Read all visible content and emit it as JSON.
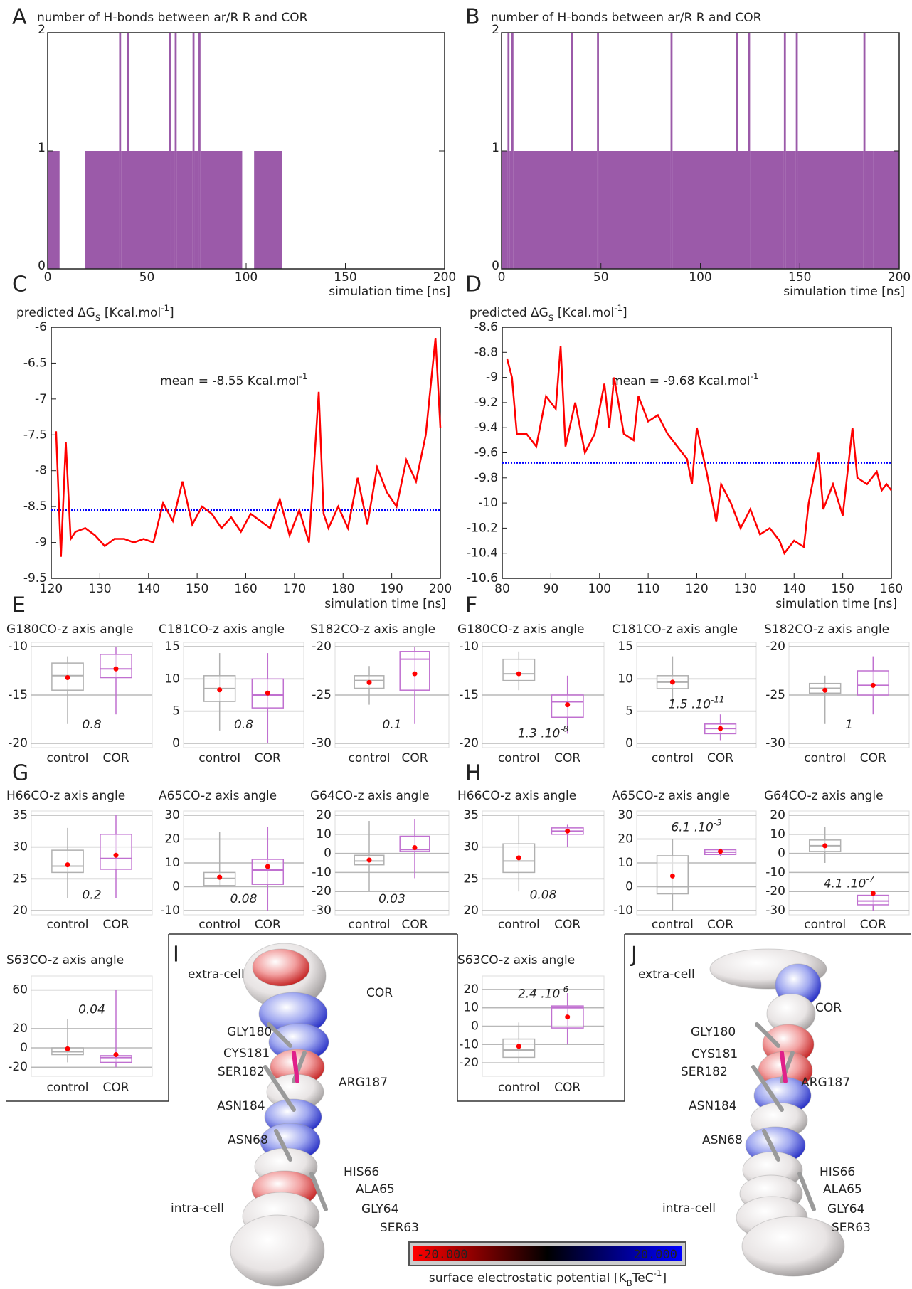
{
  "panel_letters": [
    "A",
    "B",
    "C",
    "D",
    "E",
    "F",
    "G",
    "H",
    "I",
    "J"
  ],
  "chart_data": [
    {
      "type": "histogram",
      "title": "number of H-bonds between ar/R R and COR",
      "xlabel": "simulation time [ns]",
      "color": "#8a3d9a",
      "bins": [
        0,
        6,
        19,
        36,
        37,
        40,
        41,
        61,
        62,
        64,
        65,
        73,
        74,
        76,
        77,
        98,
        104,
        118,
        200
      ],
      "values": [
        1,
        0,
        1,
        2,
        1,
        2,
        1,
        2,
        1,
        2,
        1,
        2,
        1,
        2,
        1,
        0,
        1,
        0
      ],
      "xlim": [
        0,
        200
      ],
      "xticks": [
        0,
        50,
        100,
        150,
        200
      ],
      "ylim": [
        0,
        2
      ],
      "yticks": [
        0,
        1,
        2
      ]
    },
    {
      "type": "histogram",
      "title": "number of H-bonds between ar/R R and COR",
      "xlabel": "simulation time [ns]",
      "color": "#8a3d9a",
      "bins": [
        0,
        3,
        4,
        5,
        6,
        35,
        36,
        48,
        49,
        85,
        86,
        118,
        119,
        124,
        125,
        142,
        143,
        148,
        149,
        182,
        183,
        187,
        200
      ],
      "values": [
        1,
        2,
        1,
        2,
        1,
        2,
        1,
        2,
        1,
        2,
        1,
        2,
        1,
        2,
        1,
        2,
        1,
        2,
        1,
        2,
        1,
        1
      ],
      "xlim": [
        0,
        200
      ],
      "xticks": [
        0,
        50,
        100,
        150,
        200
      ],
      "ylim": [
        0,
        2
      ],
      "yticks": [
        0,
        1,
        2
      ]
    },
    {
      "type": "line",
      "title": [
        "predicted ΔG",
        "S",
        " [Kcal.mol",
        "-1",
        "]"
      ],
      "xlabel": "simulation time [ns]",
      "color": "#ff0000",
      "mean_color": "#0000ff",
      "mean": -8.55,
      "mean_label": [
        "mean = -8.55 Kcal.mol",
        "-1"
      ],
      "x": [
        121,
        122,
        123,
        124,
        125,
        127,
        129,
        131,
        133,
        135,
        137,
        139,
        141,
        143,
        145,
        147,
        149,
        151,
        153,
        155,
        157,
        159,
        161,
        163,
        165,
        167,
        169,
        171,
        173,
        175,
        176,
        177,
        179,
        181,
        183,
        185,
        187,
        189,
        191,
        193,
        195,
        197,
        199,
        200
      ],
      "values": [
        -7.45,
        -9.2,
        -7.6,
        -8.95,
        -8.85,
        -8.8,
        -8.9,
        -9.05,
        -8.95,
        -8.95,
        -9.0,
        -8.95,
        -9.0,
        -8.45,
        -8.7,
        -8.15,
        -8.75,
        -8.5,
        -8.6,
        -8.8,
        -8.65,
        -8.85,
        -8.6,
        -8.7,
        -8.8,
        -8.4,
        -8.9,
        -8.55,
        -9.0,
        -6.9,
        -8.6,
        -8.8,
        -8.5,
        -8.8,
        -8.1,
        -8.75,
        -7.95,
        -8.3,
        -8.5,
        -7.85,
        -8.15,
        -7.5,
        -6.15,
        -7.4
      ],
      "xlim": [
        120,
        200
      ],
      "xticks": [
        120,
        130,
        140,
        150,
        160,
        170,
        180,
        190,
        200
      ],
      "ylim": [
        -9.5,
        -6
      ],
      "yticks": [
        -9.5,
        -9,
        -8.5,
        -8,
        -7.5,
        -7,
        -6.5,
        -6
      ]
    },
    {
      "type": "line",
      "title": [
        "predicted ΔG",
        "S",
        " [Kcal.mol",
        "-1",
        "]"
      ],
      "xlabel": "simulation time [ns]",
      "color": "#ff0000",
      "mean_color": "#0000ff",
      "mean": -9.68,
      "mean_label": [
        "mean = -9.68 Kcal.mol",
        "-1"
      ],
      "x": [
        81,
        82,
        83,
        85,
        87,
        89,
        91,
        92,
        93,
        95,
        97,
        99,
        101,
        102,
        103,
        105,
        107,
        108,
        110,
        112,
        114,
        116,
        118,
        119,
        120,
        122,
        124,
        125,
        127,
        129,
        131,
        133,
        135,
        137,
        138,
        140,
        142,
        143,
        145,
        146,
        148,
        150,
        152,
        153,
        155,
        157,
        158,
        159,
        160
      ],
      "values": [
        -8.85,
        -9.0,
        -9.45,
        -9.45,
        -9.55,
        -9.15,
        -9.25,
        -8.75,
        -9.55,
        -9.2,
        -9.6,
        -9.45,
        -9.05,
        -9.4,
        -9.0,
        -9.45,
        -9.5,
        -9.15,
        -9.35,
        -9.3,
        -9.45,
        -9.55,
        -9.65,
        -9.85,
        -9.4,
        -9.75,
        -10.15,
        -9.85,
        -10.0,
        -10.2,
        -10.05,
        -10.25,
        -10.2,
        -10.3,
        -10.4,
        -10.3,
        -10.35,
        -10.0,
        -9.6,
        -10.05,
        -9.85,
        -10.1,
        -9.4,
        -9.8,
        -9.85,
        -9.75,
        -9.9,
        -9.85,
        -9.9
      ],
      "xlim": [
        80,
        160
      ],
      "xticks": [
        80,
        90,
        100,
        110,
        120,
        130,
        140,
        150,
        160
      ],
      "ylim": [
        -10.6,
        -8.6
      ],
      "yticks": [
        -10.6,
        -10.4,
        -10.2,
        -10,
        -9.8,
        -9.6,
        -9.4,
        -9.2,
        -9,
        -8.8,
        -8.6
      ]
    },
    {
      "type": "box",
      "title": "G180CO-z axis angle",
      "categories": [
        "control",
        "COR"
      ],
      "ylim": [
        -20,
        -10
      ],
      "yticks": [
        -20,
        -15,
        -10
      ],
      "colors": [
        "#b0b0b0",
        "#c070d0"
      ],
      "mean_color": "#ff0000",
      "p_label": "0.8",
      "p_color": "#222222",
      "boxes": [
        {
          "whisker_low": -18,
          "q1": -14.5,
          "median": -13,
          "q3": -11.7,
          "whisker_high": -11,
          "mean": -13.2
        },
        {
          "whisker_low": -17,
          "q1": -13.2,
          "median": -12.3,
          "q3": -10.8,
          "whisker_high": -10,
          "mean": -12.3
        }
      ]
    },
    {
      "type": "box",
      "title": "C181CO-z axis angle",
      "categories": [
        "control",
        "COR"
      ],
      "ylim": [
        0,
        15
      ],
      "yticks": [
        0,
        5,
        10,
        15
      ],
      "colors": [
        "#b0b0b0",
        "#c070d0"
      ],
      "mean_color": "#ff0000",
      "p_label": "0.8",
      "p_color": "#222222",
      "boxes": [
        {
          "whisker_low": 2,
          "q1": 6.5,
          "median": 8.5,
          "q3": 10.5,
          "whisker_high": 14,
          "mean": 8.3
        },
        {
          "whisker_low": 0,
          "q1": 5.5,
          "median": 7.5,
          "q3": 10,
          "whisker_high": 14,
          "mean": 7.8
        }
      ]
    },
    {
      "type": "box",
      "title": "S182CO-z axis angle",
      "categories": [
        "control",
        "COR"
      ],
      "ylim": [
        -30,
        -20
      ],
      "yticks": [
        -30,
        -25,
        -20
      ],
      "colors": [
        "#b0b0b0",
        "#c070d0"
      ],
      "mean_color": "#ff0000",
      "p_label": "0.1",
      "p_color": "#222222",
      "boxes": [
        {
          "whisker_low": -26,
          "q1": -24.3,
          "median": -23.5,
          "q3": -23,
          "whisker_high": -22,
          "mean": -23.7
        },
        {
          "whisker_low": -28,
          "q1": -24.5,
          "median": -21.3,
          "q3": -20.5,
          "whisker_high": -20,
          "mean": -22.8
        }
      ]
    },
    {
      "type": "box",
      "title": "G180CO-z axis angle",
      "categories": [
        "control",
        "COR"
      ],
      "ylim": [
        -20,
        -10
      ],
      "yticks": [
        -20,
        -15,
        -10
      ],
      "colors": [
        "#b0b0b0",
        "#c070d0"
      ],
      "mean_color": "#ff0000",
      "p_label": [
        "1.3 .10",
        "-8"
      ],
      "p_color": "#ff0000",
      "boxes": [
        {
          "whisker_low": -14.5,
          "q1": -13.5,
          "median": -12.8,
          "q3": -11.3,
          "whisker_high": -10.5,
          "mean": -12.8
        },
        {
          "whisker_low": -19,
          "q1": -17.3,
          "median": -15.7,
          "q3": -15,
          "whisker_high": -13,
          "mean": -16
        }
      ]
    },
    {
      "type": "box",
      "title": "C181CO-z axis angle",
      "categories": [
        "control",
        "COR"
      ],
      "ylim": [
        0,
        15
      ],
      "yticks": [
        0,
        5,
        10,
        15
      ],
      "colors": [
        "#b0b0b0",
        "#c070d0"
      ],
      "mean_color": "#ff0000",
      "p_label": [
        "1.5 .10",
        "-11"
      ],
      "p_color": "#ff0000",
      "boxes": [
        {
          "whisker_low": 6.5,
          "q1": 8.5,
          "median": 9.5,
          "q3": 10.5,
          "whisker_high": 13.5,
          "mean": 9.5
        },
        {
          "whisker_low": 0.5,
          "q1": 1.5,
          "median": 2.3,
          "q3": 3,
          "whisker_high": 4.5,
          "mean": 2.3
        }
      ]
    },
    {
      "type": "box",
      "title": "S182CO-z axis angle",
      "categories": [
        "control",
        "COR"
      ],
      "ylim": [
        -30,
        -20
      ],
      "yticks": [
        -30,
        -25,
        -20
      ],
      "colors": [
        "#b0b0b0",
        "#c070d0"
      ],
      "mean_color": "#ff0000",
      "p_label": "1",
      "p_color": "#222222",
      "boxes": [
        {
          "whisker_low": -28,
          "q1": -24.8,
          "median": -24.3,
          "q3": -23.8,
          "whisker_high": -23,
          "mean": -24.5
        },
        {
          "whisker_low": -27,
          "q1": -25,
          "median": -24,
          "q3": -22.5,
          "whisker_high": -21,
          "mean": -24
        }
      ]
    },
    {
      "type": "box",
      "title": "H66CO-z axis angle",
      "categories": [
        "control",
        "COR"
      ],
      "ylim": [
        20,
        35
      ],
      "yticks": [
        20,
        25,
        30,
        35
      ],
      "colors": [
        "#b0b0b0",
        "#c070d0"
      ],
      "mean_color": "#ff0000",
      "p_label": "0.2",
      "p_color": "#222222",
      "boxes": [
        {
          "whisker_low": 22,
          "q1": 26,
          "median": 27,
          "q3": 29.5,
          "whisker_high": 33,
          "mean": 27.2
        },
        {
          "whisker_low": 22,
          "q1": 26.5,
          "median": 28.2,
          "q3": 32,
          "whisker_high": 35,
          "mean": 28.7
        }
      ]
    },
    {
      "type": "box",
      "title": "A65CO-z axis angle",
      "categories": [
        "control",
        "COR"
      ],
      "ylim": [
        -10,
        30
      ],
      "yticks": [
        -10,
        0,
        10,
        20,
        30
      ],
      "colors": [
        "#b0b0b0",
        "#c070d0"
      ],
      "mean_color": "#ff0000",
      "p_label": "0.08",
      "p_color": "#222222",
      "boxes": [
        {
          "whisker_low": 0,
          "q1": 0.5,
          "median": 3.5,
          "q3": 6,
          "whisker_high": 23,
          "mean": 4
        },
        {
          "whisker_low": -10,
          "q1": 1,
          "median": 7,
          "q3": 11.5,
          "whisker_high": 25,
          "mean": 8.5
        }
      ]
    },
    {
      "type": "box",
      "title": "G64CO-z axis angle",
      "categories": [
        "control",
        "COR"
      ],
      "ylim": [
        -30,
        20
      ],
      "yticks": [
        -30,
        -20,
        -10,
        0,
        10,
        20
      ],
      "colors": [
        "#b0b0b0",
        "#c070d0"
      ],
      "mean_color": "#ff0000",
      "p_label": "0.03",
      "p_color": "#ff0000",
      "boxes": [
        {
          "whisker_low": -20,
          "q1": -6,
          "median": -4,
          "q3": -1,
          "whisker_high": 17,
          "mean": -3.5
        },
        {
          "whisker_low": -13,
          "q1": 1,
          "median": 2,
          "q3": 9,
          "whisker_high": 18,
          "mean": 3
        }
      ]
    },
    {
      "type": "box",
      "title": "H66CO-z axis angle",
      "categories": [
        "control",
        "COR"
      ],
      "ylim": [
        20,
        35
      ],
      "yticks": [
        20,
        25,
        30,
        35
      ],
      "colors": [
        "#b0b0b0",
        "#c070d0"
      ],
      "mean_color": "#ff0000",
      "p_label": "0.08",
      "p_color": "#222222",
      "boxes": [
        {
          "whisker_low": 23,
          "q1": 26,
          "median": 27.8,
          "q3": 30.5,
          "whisker_high": 35,
          "mean": 28.3
        },
        {
          "whisker_low": 30,
          "q1": 32,
          "median": 32.5,
          "q3": 33,
          "whisker_high": 33.5,
          "mean": 32.5
        }
      ]
    },
    {
      "type": "box",
      "title": "A65CO-z axis angle",
      "categories": [
        "control",
        "COR"
      ],
      "ylim": [
        -10,
        30
      ],
      "yticks": [
        -10,
        0,
        10,
        20,
        30
      ],
      "colors": [
        "#b0b0b0",
        "#c070d0"
      ],
      "mean_color": "#ff0000",
      "p_label": [
        "6.1 .10",
        "-3"
      ],
      "p_color": "#ff0000",
      "boxes": [
        {
          "whisker_low": -10,
          "q1": -3,
          "median": 0,
          "q3": 13,
          "whisker_high": 20,
          "mean": 4.5
        },
        {
          "whisker_low": 13,
          "q1": 13.5,
          "median": 14.5,
          "q3": 15.5,
          "whisker_high": 16,
          "mean": 14.8
        }
      ]
    },
    {
      "type": "box",
      "title": "G64CO-z axis angle",
      "categories": [
        "control",
        "COR"
      ],
      "ylim": [
        -30,
        20
      ],
      "yticks": [
        -30,
        -20,
        -10,
        0,
        10,
        20
      ],
      "colors": [
        "#b0b0b0",
        "#c070d0"
      ],
      "mean_color": "#ff0000",
      "p_label": [
        "4.1 .10",
        "-7"
      ],
      "p_color": "#ff0000",
      "boxes": [
        {
          "whisker_low": -5,
          "q1": 1,
          "median": 4,
          "q3": 7,
          "whisker_high": 14,
          "mean": 4
        },
        {
          "whisker_low": -30,
          "q1": -27,
          "median": -25,
          "q3": -22,
          "whisker_high": -20,
          "mean": -21
        }
      ]
    },
    {
      "type": "box",
      "title": "S63CO-z axis angle",
      "categories": [
        "control",
        "COR"
      ],
      "ylim": [
        -25,
        70
      ],
      "yticks": [
        -20,
        0,
        20,
        60
      ],
      "colors": [
        "#b0b0b0",
        "#c070d0"
      ],
      "mean_color": "#ff0000",
      "p_label": "0.04",
      "p_color": "#ff0000",
      "boxes": [
        {
          "whisker_low": -15,
          "q1": -7,
          "median": -4,
          "q3": 0,
          "whisker_high": 30,
          "mean": -1
        },
        {
          "whisker_low": -20,
          "q1": -15,
          "median": -10,
          "q3": -8,
          "whisker_high": 60,
          "mean": -7
        }
      ]
    },
    {
      "type": "box",
      "title": "S63CO-z axis angle",
      "categories": [
        "control",
        "COR"
      ],
      "ylim": [
        -25,
        25
      ],
      "yticks": [
        -20,
        -10,
        0,
        10,
        20
      ],
      "colors": [
        "#b0b0b0",
        "#c070d0"
      ],
      "mean_color": "#ff0000",
      "p_label": [
        "2.4 .10",
        "-6"
      ],
      "p_color": "#ff0000",
      "boxes": [
        {
          "whisker_low": -20,
          "q1": -17,
          "median": -13,
          "q3": -7,
          "whisker_high": 2,
          "mean": -11
        },
        {
          "whisker_low": -10,
          "q1": -1,
          "median": 10,
          "q3": 11,
          "whisker_high": 18,
          "mean": 5
        }
      ]
    }
  ],
  "structures": [
    {
      "labels": [
        "extra-cell",
        "COR",
        "GLY180",
        "CYS181",
        "SER182",
        "ARG187",
        "ASN184",
        "ASN68",
        "HIS66",
        "ALA65",
        "GLY64",
        "SER63",
        "intra-cell"
      ]
    },
    {
      "labels": [
        "extra-cell",
        "COR",
        "GLY180",
        "CYS181",
        "SER182",
        "ARG187",
        "ASN184",
        "ASN68",
        "HIS66",
        "ALA65",
        "GLY64",
        "SER63",
        "intra-cell"
      ]
    }
  ],
  "colorbar": {
    "min_label": "-20.000",
    "max_label": "20.000",
    "colors": [
      "#ff0000",
      "#000000",
      "#0000ff"
    ],
    "label": [
      "surface electrostatic potential [K",
      "B",
      "TeC",
      "-1",
      "]"
    ]
  }
}
